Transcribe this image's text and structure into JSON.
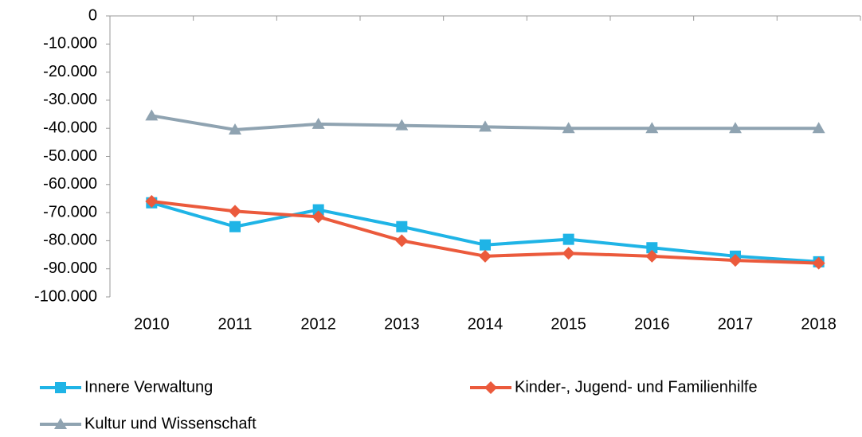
{
  "chart_data": {
    "type": "line",
    "categories": [
      "2010",
      "2011",
      "2012",
      "2013",
      "2014",
      "2015",
      "2016",
      "2017",
      "2018"
    ],
    "series": [
      {
        "name": "Innere Verwaltung",
        "color": "#1fb4e6",
        "marker": "square",
        "values": [
          -66500,
          -75000,
          -69000,
          -75000,
          -81500,
          -79500,
          -82500,
          -85500,
          -87500
        ]
      },
      {
        "name": "Kinder-, Jugend- und Familienhilfe",
        "color": "#eb5a3c",
        "marker": "diamond",
        "values": [
          -66000,
          -69500,
          -71500,
          -80000,
          -85500,
          -84500,
          -85500,
          -87000,
          -88000
        ]
      },
      {
        "name": "Kultur und Wissenschaft",
        "color": "#8fa3b1",
        "marker": "triangle",
        "values": [
          -35500,
          -40500,
          -38500,
          -39000,
          -39500,
          -40000,
          -40000,
          -40000,
          -40000
        ]
      }
    ],
    "ylim": [
      -100000,
      0
    ],
    "yticks": [
      0,
      {
        "value": -10000,
        "label": "-10.000"
      },
      {
        "value": -20000,
        "label": "-20.000"
      },
      {
        "value": -30000,
        "label": "-30.000"
      },
      {
        "value": -40000,
        "label": "-40.000"
      },
      {
        "value": -50000,
        "label": "-50.000"
      },
      {
        "value": -60000,
        "label": "-60.000"
      },
      {
        "value": -70000,
        "label": "-70.000"
      },
      {
        "value": -80000,
        "label": "-80.000"
      },
      {
        "value": -90000,
        "label": "-90.000"
      },
      {
        "value": -100000,
        "label": "-100.000"
      }
    ],
    "legend": "bottom"
  }
}
